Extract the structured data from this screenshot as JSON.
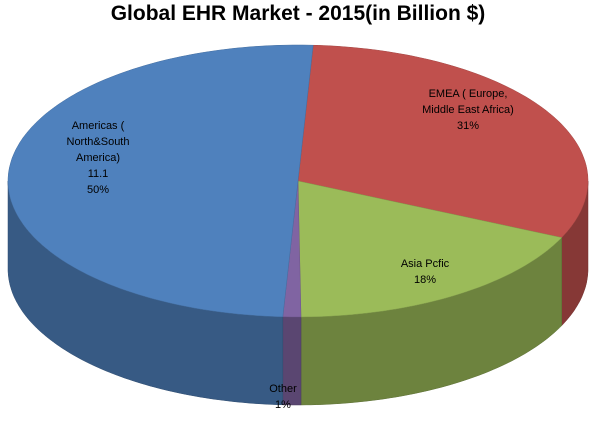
{
  "chart_data": {
    "type": "pie3d",
    "title": "Global EHR Market - 2015(in Billion $)",
    "categories": [
      "EMEA ( Europe, Middle East Africa)",
      "Asia Pcfic",
      "Other",
      "Americas ( North&South America)"
    ],
    "values": [
      31,
      18,
      1,
      50
    ],
    "value_labels": [
      "31%",
      "18%",
      "1%",
      "50%"
    ],
    "amounts": [
      null,
      null,
      null,
      11.1
    ],
    "colors": [
      "#c0504d",
      "#9bbb59",
      "#8064a2",
      "#4f81bd"
    ]
  }
}
